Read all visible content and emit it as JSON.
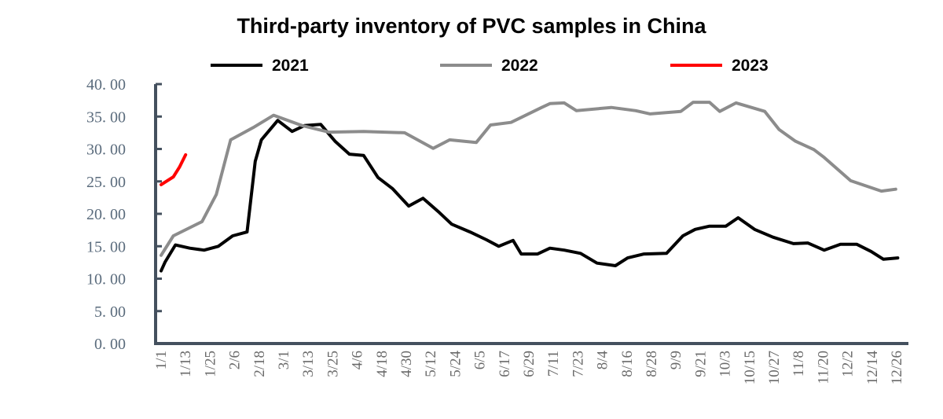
{
  "chart_data": {
    "type": "line",
    "title": "Third-party inventory of PVC samples in China",
    "xlabel": "",
    "ylabel": "",
    "ylim": [
      0,
      40
    ],
    "yticks": [
      "0. 00",
      "5. 00",
      "10. 00",
      "15. 00",
      "20. 00",
      "25. 00",
      "30. 00",
      "35. 00",
      "40. 00"
    ],
    "xticks": [
      "1/1",
      "1/13",
      "1/25",
      "2/6",
      "2/18",
      "3/1",
      "3/13",
      "3/25",
      "4/6",
      "4/18",
      "4/30",
      "5/12",
      "5/24",
      "6/5",
      "6/17",
      "6/29",
      "7/11",
      "7/23",
      "8/4",
      "8/16",
      "8/28",
      "9/9",
      "9/21",
      "10/3",
      "10/15",
      "10/27",
      "11/8",
      "11/20",
      "12/2",
      "12/14",
      "12/26"
    ],
    "xlim": [
      "1/1",
      "12/31"
    ],
    "grid": false,
    "legend_position": "top",
    "series": [
      {
        "name": "2021",
        "color": "#000000",
        "x": [
          "1/1",
          "1/3",
          "1/8",
          "1/15",
          "1/22",
          "1/29",
          "2/5",
          "2/12",
          "2/16",
          "2/19",
          "2/27",
          "3/6",
          "3/12",
          "3/20",
          "3/27",
          "4/3",
          "4/10",
          "4/17",
          "4/24",
          "5/2",
          "5/9",
          "5/17",
          "5/23",
          "6/1",
          "6/9",
          "6/15",
          "6/22",
          "6/26",
          "7/4",
          "7/10",
          "7/17",
          "7/25",
          "8/2",
          "8/11",
          "8/17",
          "8/25",
          "9/5",
          "9/13",
          "9/19",
          "9/26",
          "10/4",
          "10/10",
          "10/18",
          "10/27",
          "11/6",
          "11/13",
          "11/21",
          "11/29",
          "12/7",
          "12/14",
          "12/20",
          "12/27"
        ],
        "values": [
          11.2,
          12.6,
          15.2,
          14.7,
          14.4,
          15.0,
          16.6,
          17.2,
          28.1,
          31.4,
          34.4,
          32.7,
          33.6,
          33.8,
          31.2,
          29.2,
          29.0,
          25.6,
          23.9,
          21.2,
          22.4,
          20.2,
          18.4,
          17.2,
          16.0,
          15.0,
          15.9,
          13.8,
          13.8,
          14.7,
          14.4,
          13.9,
          12.4,
          12.0,
          13.2,
          13.8,
          13.9,
          16.6,
          17.6,
          18.1,
          18.1,
          19.4,
          17.6,
          16.4,
          15.4,
          15.5,
          14.4,
          15.3,
          15.3,
          14.2,
          13.0,
          13.2
        ]
      },
      {
        "name": "2022",
        "color": "#8c8c8c",
        "x": [
          "1/1",
          "1/7",
          "1/21",
          "1/28",
          "2/4",
          "2/15",
          "2/25",
          "3/11",
          "3/24",
          "4/10",
          "4/30",
          "5/14",
          "5/22",
          "6/4",
          "6/11",
          "6/21",
          "7/6",
          "7/10",
          "7/17",
          "7/23",
          "8/9",
          "8/21",
          "8/28",
          "9/12",
          "9/18",
          "9/26",
          "10/1",
          "10/9",
          "10/23",
          "10/30",
          "11/7",
          "11/16",
          "11/21",
          "12/4",
          "12/19",
          "12/26"
        ],
        "values": [
          13.6,
          16.6,
          18.8,
          23.0,
          31.4,
          33.3,
          35.2,
          33.6,
          32.6,
          32.7,
          32.5,
          30.1,
          31.4,
          31.0,
          33.7,
          34.1,
          36.4,
          37.0,
          37.1,
          35.9,
          36.4,
          35.9,
          35.4,
          35.8,
          37.2,
          37.2,
          35.8,
          37.1,
          35.8,
          33.0,
          31.2,
          29.9,
          28.7,
          25.1,
          23.5,
          23.8
        ]
      },
      {
        "name": "2023",
        "color": "#ff0000",
        "x": [
          "1/1",
          "1/7",
          "1/10",
          "1/13"
        ],
        "values": [
          24.5,
          25.7,
          27.2,
          29.1
        ]
      }
    ]
  }
}
